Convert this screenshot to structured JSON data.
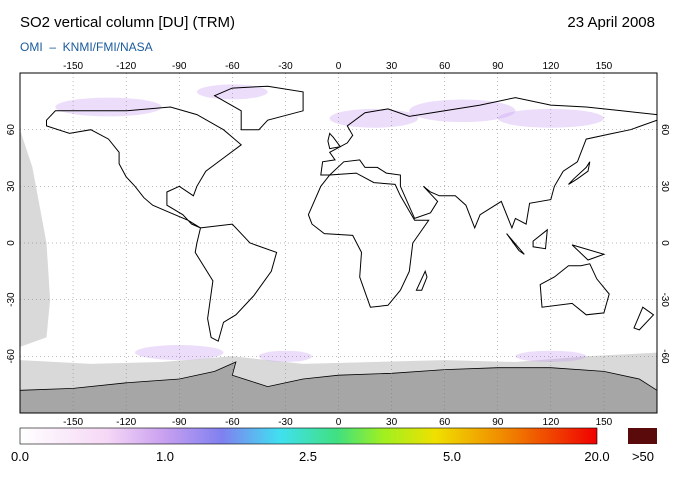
{
  "header": {
    "title": "SO2 vertical column [DU] (TRM)",
    "date": "23 April 2008",
    "subtitle": "OMI  –  KNMI/FMI/NASA"
  },
  "map": {
    "lon_ticks": [
      -150,
      -120,
      -90,
      -60,
      -30,
      0,
      30,
      60,
      90,
      120,
      150
    ],
    "lat_ticks": [
      60,
      30,
      0,
      -30,
      -60
    ]
  },
  "colorbar": {
    "labels": [
      "0.0",
      "1.0",
      "2.5",
      "5.0",
      "20.0"
    ],
    "overflow_label": ">50"
  }
}
